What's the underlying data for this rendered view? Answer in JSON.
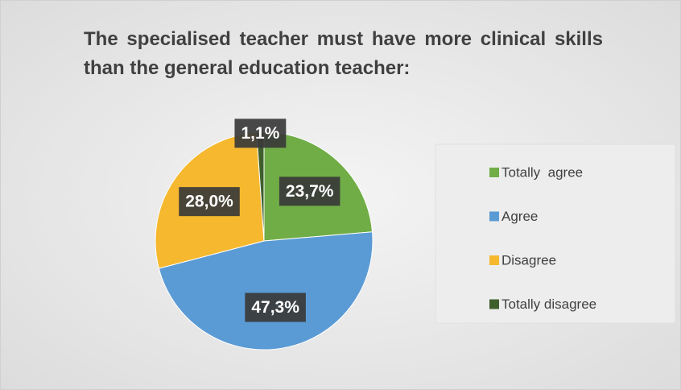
{
  "chart_data": {
    "type": "pie",
    "title": "The specialised teacher must have more clinical skills than the general education teacher:",
    "categories": [
      "Totally  agree",
      "Agree",
      "Disagree",
      "Totally disagree"
    ],
    "values": [
      23.7,
      47.3,
      28.0,
      1.1
    ],
    "value_labels": [
      "23,7%",
      "47,3%",
      "28,0%",
      "1,1%"
    ],
    "colors": [
      "#70ad47",
      "#5b9bd5",
      "#f5b82e",
      "#3e5f2c"
    ],
    "legend": "right"
  }
}
